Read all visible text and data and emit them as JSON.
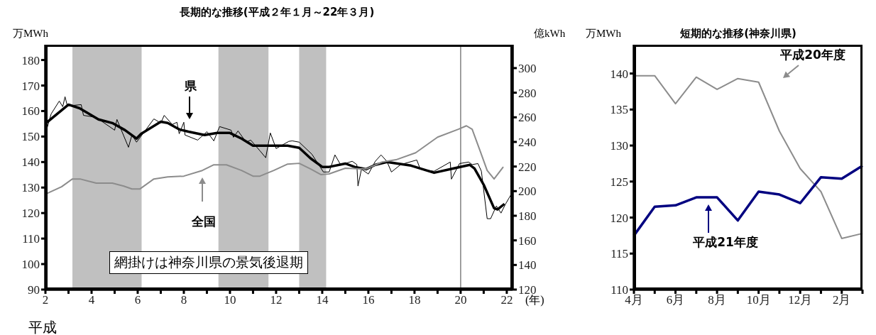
{
  "chart_data": [
    {
      "type": "line",
      "title": "長期的な推移(平成２年１月～22年３月)",
      "ylabel": "万MWh",
      "y2label": "億kWh",
      "xlabel": "(年)",
      "annotations": [
        "網掛けは神奈川県の景気後退期",
        "平成"
      ],
      "xlim": [
        2,
        22.25
      ],
      "xticks": [
        2,
        {
          "value": 3,
          "label": null
        },
        4,
        {
          "value": 5,
          "label": null
        },
        6,
        {
          "value": 7,
          "label": null
        },
        8,
        {
          "value": 9,
          "label": null
        },
        10,
        {
          "value": 11,
          "label": null
        },
        12,
        {
          "value": 13,
          "label": null
        },
        14,
        {
          "value": 15,
          "label": null
        },
        16,
        {
          "value": 17,
          "label": null
        },
        18,
        {
          "value": 19,
          "label": null
        },
        20,
        {
          "value": 21,
          "label": null
        },
        22
      ],
      "ylim": [
        90,
        186
      ],
      "yticks": [
        90,
        100,
        110,
        120,
        130,
        140,
        150,
        160,
        170,
        180
      ],
      "y2lim": [
        120,
        319
      ],
      "y2ticks": [
        120,
        140,
        160,
        180,
        200,
        220,
        240,
        260,
        280,
        300
      ],
      "bands": [
        {
          "axis": "x",
          "from": 3.17,
          "to": 6.17,
          "color": "#c0c0c0"
        },
        {
          "axis": "x",
          "from": 9.5,
          "to": 11.67,
          "color": "#c0c0c0"
        },
        {
          "axis": "x",
          "from": 13.0,
          "to": 14.17,
          "color": "#c0c0c0"
        }
      ],
      "ref_lines": [
        {
          "axis": "x",
          "value": 20,
          "color": "#808080"
        }
      ],
      "series": [
        {
          "color": "#000000",
          "x": [
            2.0,
            2.25,
            2.6,
            2.75,
            2.85,
            2.95,
            3.55,
            3.65,
            4.2,
            5.0,
            5.1,
            5.6,
            5.75,
            5.95,
            6.25,
            6.7,
            7.0,
            7.15,
            7.5,
            7.7,
            7.8,
            8.0,
            8.05,
            8.6,
            9.0,
            9.3,
            9.55,
            10.05,
            10.15,
            10.35,
            10.7,
            10.9,
            11.3,
            11.55,
            11.75,
            12.0,
            12.55,
            12.7,
            13.0,
            13.55,
            14.05,
            14.3,
            14.55,
            14.8,
            15.3,
            15.5,
            15.55,
            15.7,
            16.0,
            16.3,
            16.55,
            16.8,
            17.0,
            17.4,
            18.1,
            18.25,
            18.85,
            19.55,
            19.6,
            19.95,
            20.35,
            20.5,
            20.75,
            20.9,
            21.15,
            21.3,
            21.55,
            21.75,
            21.95,
            22.17
          ],
          "values": [
            151.1,
            158.9,
            163.9,
            161.7,
            165.6,
            162,
            162.5,
            158.3,
            157.5,
            152.5,
            156.7,
            145.8,
            150.6,
            147.8,
            151.4,
            156.9,
            155.3,
            158.3,
            154.7,
            155.6,
            151.1,
            155.6,
            150.6,
            148.6,
            151.9,
            148.3,
            153.9,
            152.5,
            149.7,
            152.2,
            147.8,
            148.6,
            144.4,
            141.7,
            151.4,
            145.3,
            148.1,
            148.3,
            147.8,
            143.1,
            136.1,
            136.1,
            142.8,
            138.9,
            140.3,
            139,
            130.6,
            137.2,
            135.3,
            140.3,
            142.8,
            140.3,
            136.1,
            139,
            140.8,
            137.2,
            136.4,
            140,
            133.3,
            139.4,
            140,
            139,
            139.4,
            136.4,
            117.8,
            117.8,
            122.8,
            120,
            123.6,
            127
          ]
        },
        {
          "name": "県",
          "color": "#000000",
          "x": [
            2.03,
            3.0,
            3.48,
            4.3,
            4.9,
            5.45,
            5.95,
            6.15,
            6.55,
            7.0,
            7.3,
            7.8,
            8.2,
            8.9,
            9.45,
            10.0,
            10.5,
            11.0,
            11.6,
            12.5,
            13.0,
            13.5,
            14.0,
            14.3,
            15.0,
            15.4,
            15.9,
            16.3,
            16.8,
            17.85,
            18.85,
            19.7,
            20.4,
            20.6,
            21.0,
            21.45,
            21.6,
            21.9
          ],
          "values": [
            155.3,
            162.5,
            161.1,
            156.7,
            155.3,
            152.5,
            149.2,
            151.1,
            153.3,
            155.8,
            155.3,
            152.8,
            151.9,
            150.6,
            151.4,
            151.4,
            149.2,
            146.4,
            146.4,
            146.4,
            145.6,
            141.4,
            138.1,
            138.1,
            139.4,
            138.1,
            137.2,
            138.9,
            140,
            138.6,
            135.8,
            137.5,
            138.9,
            137.5,
            131.1,
            121.9,
            121.4,
            123.6
          ]
        },
        {
          "name": "全国",
          "color": "#8c8c8c",
          "axis": "y2",
          "x": [
            2.03,
            2.7,
            3.17,
            3.5,
            4.2,
            4.9,
            5.4,
            5.75,
            6.1,
            6.7,
            7.3,
            8.0,
            8.8,
            9.3,
            9.85,
            10.5,
            11.0,
            11.3,
            11.9,
            12.5,
            13.0,
            13.5,
            13.95,
            14.3,
            15.0,
            15.9,
            16.6,
            17.2,
            18.05,
            19.0,
            19.9,
            20.25,
            20.5,
            20.85,
            21.15,
            21.45,
            21.85
          ],
          "values": [
            197.8,
            203.6,
            209.9,
            209.9,
            206.5,
            206.5,
            204.1,
            201.8,
            201.8,
            209.9,
            211.6,
            212.2,
            216.8,
            221.4,
            221.4,
            216.8,
            212.2,
            212.2,
            216.8,
            222,
            222.6,
            218,
            213.4,
            214,
            218.6,
            218,
            223.7,
            225.5,
            231.2,
            243.9,
            250.3,
            253.1,
            250.3,
            232.4,
            216.8,
            209.9,
            219.7
          ]
        }
      ]
    },
    {
      "type": "line",
      "title": "短期的な推移(神奈川県)",
      "ylabel": "万MWh",
      "categories": [
        "4月",
        null,
        "6月",
        null,
        "8月",
        null,
        "10月",
        null,
        "12月",
        null,
        "2月",
        null
      ],
      "ylim": [
        110,
        144
      ],
      "yticks": [
        110,
        115,
        120,
        125,
        130,
        135,
        140
      ],
      "series": [
        {
          "name": "平成20年度",
          "color": "#8c8c8c",
          "values": [
            139.7,
            139.7,
            135.8,
            139.5,
            137.8,
            139.3,
            138.8,
            132,
            126.8,
            123.6,
            117.1,
            117.8
          ]
        },
        {
          "name": "平成21年度",
          "color": "#000080",
          "values": [
            117.5,
            121.5,
            121.7,
            122.8,
            122.8,
            119.6,
            123.6,
            123.2,
            122,
            125.6,
            125.4,
            127.2
          ]
        }
      ]
    }
  ]
}
